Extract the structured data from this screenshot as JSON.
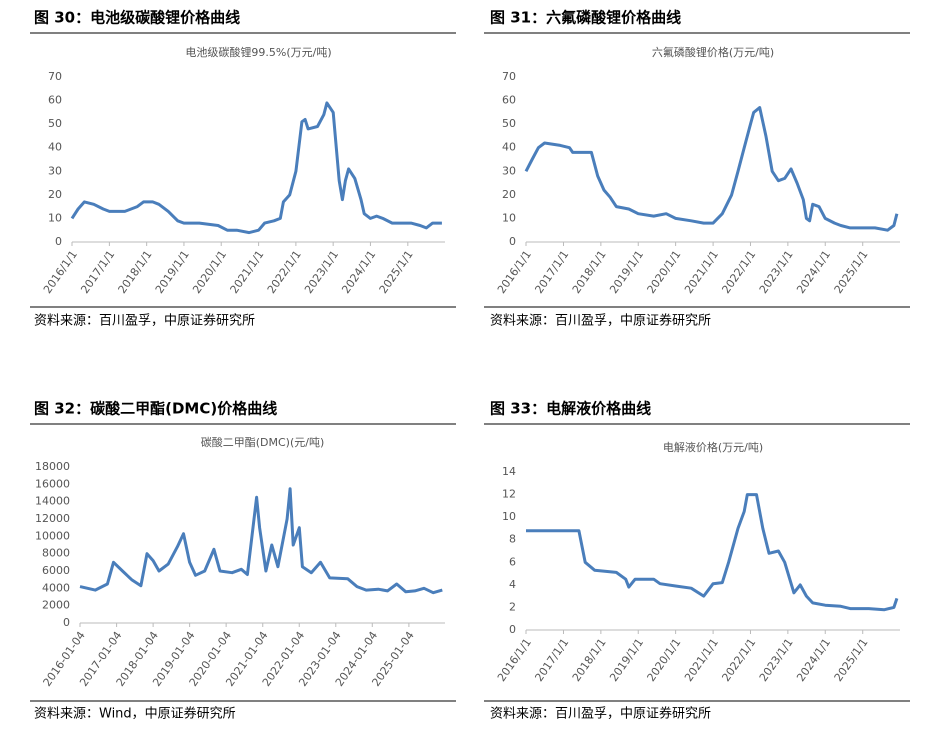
{
  "chart_data": [
    {
      "type": "line",
      "figure_title": "图 30：电池级碳酸锂价格曲线",
      "title": "电池级碳酸锂99.5%(万元/吨)",
      "source": "资料来源：百川盈孚，中原证券研究所",
      "x": [
        "2016/1/1",
        "2016/3/1",
        "2016/5/1",
        "2016/8/1",
        "2016/11/1",
        "2017/1/1",
        "2017/6/1",
        "2017/10/1",
        "2017/12/1",
        "2018/3/1",
        "2018/5/1",
        "2018/8/1",
        "2018/11/1",
        "2019/1/1",
        "2019/6/1",
        "2019/12/1",
        "2020/3/1",
        "2020/6/1",
        "2020/10/1",
        "2021/1/1",
        "2021/3/1",
        "2021/6/1",
        "2021/8/1",
        "2021/9/1",
        "2021/11/1",
        "2022/1/1",
        "2022/3/1",
        "2022/4/1",
        "2022/5/1",
        "2022/8/1",
        "2022/10/1",
        "2022/11/1",
        "2023/1/1",
        "2023/2/1",
        "2023/3/1",
        "2023/4/1",
        "2023/5/1",
        "2023/6/1",
        "2023/8/1",
        "2023/10/1",
        "2023/11/1",
        "2024/1/1",
        "2024/3/1",
        "2024/5/1",
        "2024/8/1",
        "2024/11/1",
        "2025/2/1",
        "2025/5/1",
        "2025/7/1",
        "2025/9/1",
        "2025/12/1"
      ],
      "series": [
        {
          "color": "#4a7ebb",
          "values": [
            10,
            14,
            17,
            16,
            14,
            13,
            13,
            15,
            17,
            17,
            16,
            13,
            9,
            8,
            8,
            7,
            5,
            5,
            4,
            5,
            8,
            9,
            10,
            17,
            20,
            30,
            51,
            52,
            48,
            49,
            54,
            59,
            55,
            40,
            26,
            18,
            26,
            31,
            27,
            18,
            12,
            10,
            11,
            10,
            8,
            8,
            8,
            7,
            6,
            8,
            8
          ]
        }
      ],
      "xlim": [
        "2016/1/1",
        "2025/12/31"
      ],
      "xticks": [
        "2016/1/1",
        "2017/1/1",
        "2018/1/1",
        "2019/1/1",
        "2020/1/1",
        "2021/1/1",
        "2022/1/1",
        "2023/1/1",
        "2024/1/1",
        "2025/1/1"
      ],
      "ylim": [
        0,
        70
      ],
      "yticks": [
        0,
        10,
        20,
        30,
        40,
        50,
        60,
        70
      ]
    },
    {
      "type": "line",
      "figure_title": "图 31：六氟磷酸锂价格曲线",
      "title": "六氟磷酸锂价格(万元/吨)",
      "source": "资料来源：百川盈孚，中原证券研究所",
      "x": [
        "2016/1/1",
        "2016/3/1",
        "2016/5/1",
        "2016/7/1",
        "2016/12/1",
        "2017/3/1",
        "2017/4/1",
        "2017/10/1",
        "2017/12/1",
        "2018/2/1",
        "2018/4/1",
        "2018/6/1",
        "2018/10/1",
        "2019/1/1",
        "2019/6/1",
        "2019/10/1",
        "2020/1/1",
        "2020/6/1",
        "2020/10/1",
        "2021/1/1",
        "2021/4/1",
        "2021/7/1",
        "2021/9/1",
        "2021/11/1",
        "2022/1/1",
        "2022/2/1",
        "2022/4/1",
        "2022/6/1",
        "2022/8/1",
        "2022/10/1",
        "2022/12/1",
        "2023/2/1",
        "2023/4/1",
        "2023/6/1",
        "2023/7/1",
        "2023/8/1",
        "2023/9/1",
        "2023/11/1",
        "2024/1/1",
        "2024/4/1",
        "2024/6/1",
        "2024/9/1",
        "2025/1/1",
        "2025/5/1",
        "2025/9/1",
        "2025/11/1",
        "2025/12/1"
      ],
      "series": [
        {
          "color": "#4a7ebb",
          "values": [
            30,
            35,
            40,
            42,
            41,
            40,
            38,
            38,
            28,
            22,
            19,
            15,
            14,
            12,
            11,
            12,
            10,
            9,
            8,
            8,
            12,
            20,
            30,
            40,
            50,
            55,
            57,
            45,
            30,
            26,
            27,
            31,
            25,
            18,
            10,
            9,
            16,
            15,
            10,
            8,
            7,
            6,
            6,
            6,
            5,
            7,
            12
          ]
        }
      ],
      "xlim": [
        "2016/1/1",
        "2025/12/31"
      ],
      "xticks": [
        "2016/1/1",
        "2017/1/1",
        "2018/1/1",
        "2019/1/1",
        "2020/1/1",
        "2021/1/1",
        "2022/1/1",
        "2023/1/1",
        "2024/1/1",
        "2025/1/1"
      ],
      "ylim": [
        0,
        70
      ],
      "yticks": [
        0,
        10,
        20,
        30,
        40,
        50,
        60,
        70
      ]
    },
    {
      "type": "line",
      "figure_title": "图 32：碳酸二甲酯(DMC)价格曲线",
      "title": "碳酸二甲酯(DMC)(元/吨)",
      "source": "资料来源：Wind，中原证券研究所",
      "x": [
        "2016-01-04",
        "2016-06-04",
        "2016-10-04",
        "2016-12-04",
        "2017-03-04",
        "2017-06-04",
        "2017-09-04",
        "2017-11-04",
        "2018-01-04",
        "2018-03-04",
        "2018-06-04",
        "2018-09-04",
        "2018-11-04",
        "2019-01-04",
        "2019-03-04",
        "2019-06-04",
        "2019-09-04",
        "2019-11-04",
        "2020-03-04",
        "2020-06-04",
        "2020-08-04",
        "2020-11-04",
        "2020-12-04",
        "2021-02-04",
        "2021-04-04",
        "2021-06-04",
        "2021-09-04",
        "2021-10-04",
        "2021-11-04",
        "2022-01-04",
        "2022-02-04",
        "2022-05-04",
        "2022-08-04",
        "2022-11-04",
        "2023-05-04",
        "2023-08-04",
        "2023-11-04",
        "2024-03-04",
        "2024-06-04",
        "2024-09-04",
        "2024-12-04",
        "2025-03-04",
        "2025-06-04",
        "2025-09-04",
        "2025-12-04"
      ],
      "series": [
        {
          "color": "#4a7ebb",
          "values": [
            4200,
            3800,
            4500,
            7000,
            6000,
            5000,
            4300,
            8000,
            7200,
            6000,
            6800,
            8800,
            10300,
            7000,
            5500,
            6000,
            8500,
            6000,
            5800,
            6200,
            5600,
            14500,
            11000,
            6000,
            9000,
            6500,
            12000,
            15500,
            9000,
            11000,
            6500,
            5800,
            7000,
            5200,
            5100,
            4200,
            3800,
            3900,
            3700,
            4500,
            3600,
            3700,
            4000,
            3500,
            3800
          ]
        }
      ],
      "xlim": [
        "2016-01-04",
        "2025-12-31"
      ],
      "xticks": [
        "2016-01-04",
        "2017-01-04",
        "2018-01-04",
        "2019-01-04",
        "2020-01-04",
        "2021-01-04",
        "2022-01-04",
        "2023-01-04",
        "2024-01-04",
        "2025-01-04"
      ],
      "ylim": [
        0,
        18000
      ],
      "yticks": [
        0,
        2000,
        4000,
        6000,
        8000,
        10000,
        12000,
        14000,
        16000,
        18000
      ]
    },
    {
      "type": "line",
      "figure_title": "图 33：电解液价格曲线",
      "title": "电解液价格(万元/吨)",
      "source": "资料来源：百川盈孚，中原证券研究所",
      "x": [
        "2016/1/1",
        "2017/6/1",
        "2017/8/1",
        "2017/11/1",
        "2018/6/1",
        "2018/9/1",
        "2018/10/1",
        "2018/12/1",
        "2019/6/1",
        "2019/8/1",
        "2020/1/1",
        "2020/6/1",
        "2020/10/1",
        "2021/1/1",
        "2021/4/1",
        "2021/6/1",
        "2021/9/1",
        "2021/11/1",
        "2021/12/1",
        "2022/3/1",
        "2022/5/1",
        "2022/7/1",
        "2022/10/1",
        "2022/12/1",
        "2023/3/1",
        "2023/5/1",
        "2023/7/1",
        "2023/9/1",
        "2024/1/1",
        "2024/6/1",
        "2024/9/1",
        "2025/3/1",
        "2025/8/1",
        "2025/11/1",
        "2025/12/1"
      ],
      "series": [
        {
          "color": "#4a7ebb",
          "values": [
            8.8,
            8.8,
            6,
            5.3,
            5.1,
            4.5,
            3.8,
            4.5,
            4.5,
            4.1,
            3.9,
            3.7,
            3.0,
            4.1,
            4.2,
            6,
            9,
            10.5,
            12,
            12,
            9,
            6.8,
            7,
            6,
            3.3,
            4,
            3,
            2.4,
            2.2,
            2.1,
            1.9,
            1.9,
            1.8,
            2.0,
            2.8
          ]
        }
      ],
      "xlim": [
        "2016/1/1",
        "2025/12/31"
      ],
      "xticks": [
        "2016/1/1",
        "2017/1/1",
        "2018/1/1",
        "2019/1/1",
        "2020/1/1",
        "2021/1/1",
        "2022/1/1",
        "2023/1/1",
        "2024/1/1",
        "2025/1/1"
      ],
      "ylim": [
        0,
        14
      ],
      "yticks": [
        0,
        2,
        4,
        6,
        8,
        10,
        12,
        14
      ]
    }
  ]
}
